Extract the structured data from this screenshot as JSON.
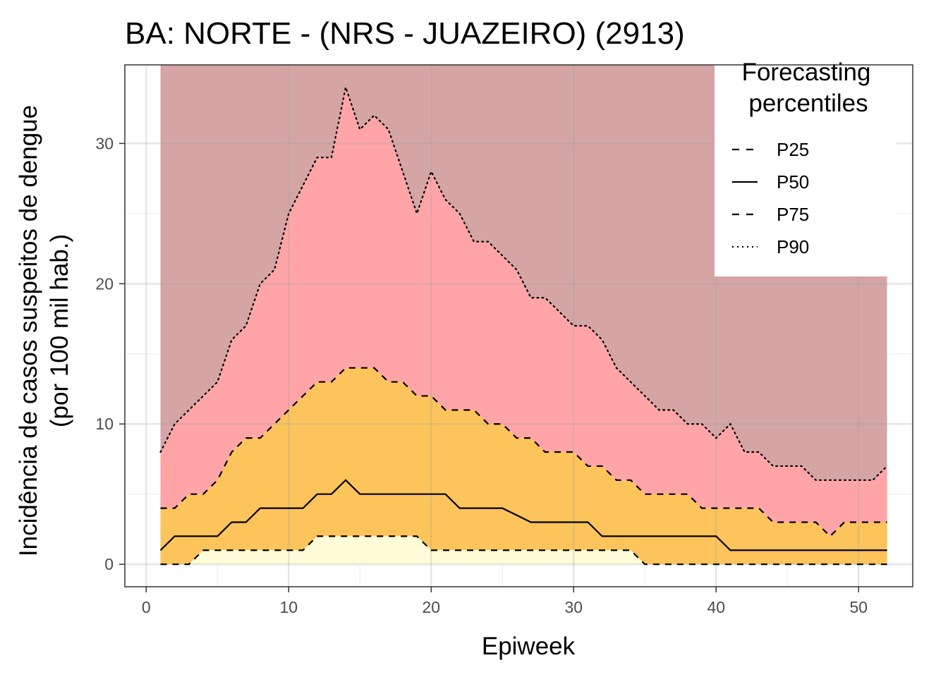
{
  "chart_data": {
    "type": "area",
    "title": "BA: NORTE - (NRS - JUAZEIRO) (2913)",
    "xlabel": "Epiweek",
    "ylabel_line1": "Incidência de casos suspeitos de dengue",
    "ylabel_line2": "(por 100 mil hab.)",
    "xlim": [
      -1.5,
      53.8
    ],
    "ylim": [
      -1.6,
      35.6
    ],
    "x_ticks": [
      0,
      10,
      20,
      30,
      40,
      50
    ],
    "y_ticks": [
      0,
      10,
      20,
      30
    ],
    "x_tick_labels": [
      "0",
      "10",
      "20",
      "30",
      "40",
      "50"
    ],
    "y_tick_labels": [
      "0",
      "10",
      "20",
      "30"
    ],
    "grid": true,
    "legend": {
      "title_line1": "Forecasting",
      "title_line2": "percentiles",
      "position": "top-right",
      "items": [
        {
          "label": "P25",
          "linestyle": "dashed"
        },
        {
          "label": "P50",
          "linestyle": "solid"
        },
        {
          "label": "P75",
          "linestyle": "dashed"
        },
        {
          "label": "P90",
          "linestyle": "dotted"
        }
      ]
    },
    "band_colors": {
      "above_p90": "#d5a5a6",
      "p75_p90": "#ffa5a7",
      "p25_p75": "#fdc45b",
      "below_p25": "#fffdd8"
    },
    "x": [
      1,
      2,
      3,
      4,
      5,
      6,
      7,
      8,
      9,
      10,
      11,
      12,
      13,
      14,
      15,
      16,
      17,
      18,
      19,
      20,
      21,
      22,
      23,
      24,
      25,
      26,
      27,
      28,
      29,
      30,
      31,
      32,
      33,
      34,
      35,
      36,
      37,
      38,
      39,
      40,
      41,
      42,
      43,
      44,
      45,
      46,
      47,
      48,
      49,
      50,
      51,
      52
    ],
    "series": [
      {
        "name": "P25",
        "values": [
          0,
          0,
          0,
          1,
          1,
          1,
          1,
          1,
          1,
          1,
          1,
          2,
          2,
          2,
          2,
          2,
          2,
          2,
          2,
          1,
          1,
          1,
          1,
          1,
          1,
          1,
          1,
          1,
          1,
          1,
          1,
          1,
          1,
          1,
          0,
          0,
          0,
          0,
          0,
          0,
          0,
          0,
          0,
          0,
          0,
          0,
          0,
          0,
          0,
          0,
          0,
          0
        ]
      },
      {
        "name": "P50",
        "values": [
          1,
          2,
          2,
          2,
          2,
          3,
          3,
          4,
          4,
          4,
          4,
          5,
          5,
          6,
          5,
          5,
          5,
          5,
          5,
          5,
          5,
          4,
          4,
          4,
          4,
          3.5,
          3,
          3,
          3,
          3,
          3,
          2,
          2,
          2,
          2,
          2,
          2,
          2,
          2,
          2,
          1,
          1,
          1,
          1,
          1,
          1,
          1,
          1,
          1,
          1,
          1,
          1
        ]
      },
      {
        "name": "P75",
        "values": [
          4,
          4,
          5,
          5,
          6,
          8,
          9,
          9,
          10,
          11,
          12,
          13,
          13,
          14,
          14,
          14,
          13,
          13,
          12,
          12,
          11,
          11,
          11,
          10,
          10,
          9,
          9,
          8,
          8,
          8,
          7,
          7,
          6,
          6,
          5,
          5,
          5,
          5,
          4,
          4,
          4,
          4,
          4,
          3,
          3,
          3,
          3,
          2,
          3,
          3,
          3,
          3
        ]
      },
      {
        "name": "P90",
        "values": [
          8,
          10,
          11,
          12,
          13,
          16,
          17,
          20,
          21,
          25,
          27,
          29,
          29,
          34,
          31,
          32,
          31,
          28,
          25,
          28,
          26,
          25,
          23,
          23,
          22,
          21,
          19,
          19,
          18,
          17,
          17,
          16,
          14,
          13,
          12,
          11,
          11,
          10,
          10,
          9,
          10,
          8,
          8,
          7,
          7,
          7,
          6,
          6,
          6,
          6,
          6,
          7
        ]
      }
    ]
  }
}
